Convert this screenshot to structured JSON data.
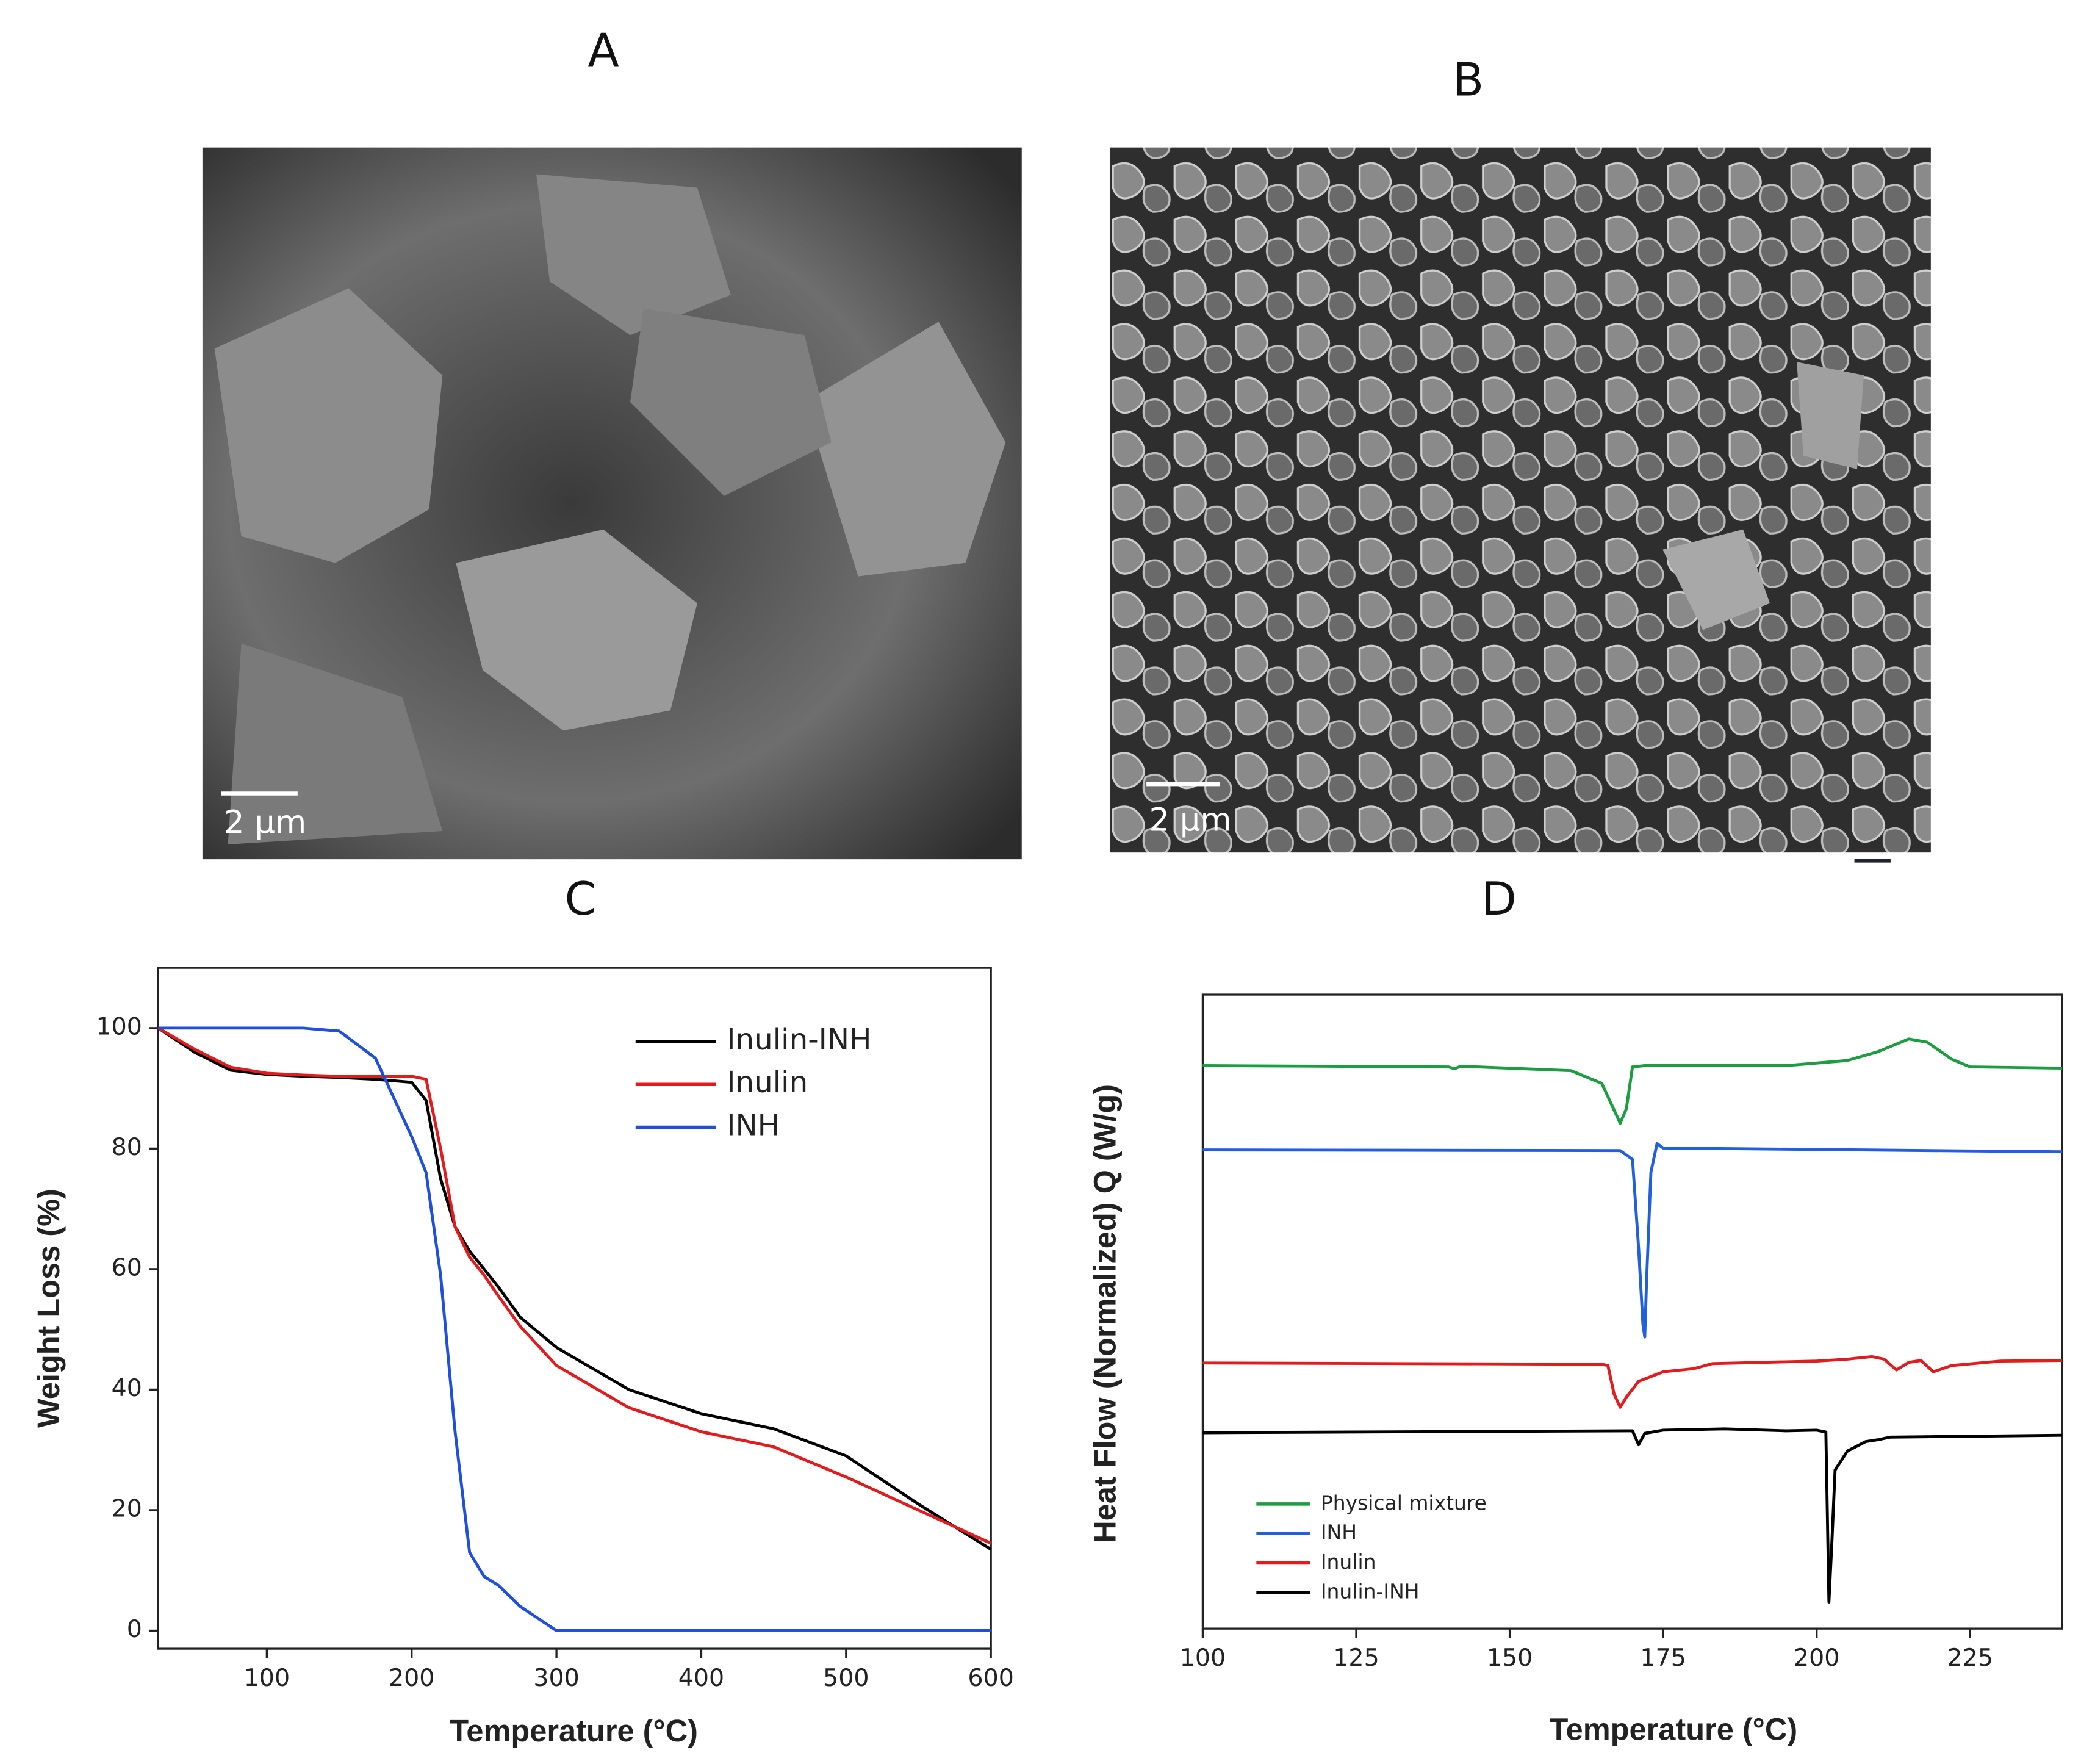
{
  "panels": [
    {
      "label": "A",
      "scale_bar": "2 μm"
    },
    {
      "label": "B",
      "scale_bar": "2 μm"
    }
  ],
  "chart_data": [
    {
      "type": "line",
      "title": "C",
      "x_label": "Temperature (°C)",
      "y_label": "Weight Loss (%)",
      "x": [
        25,
        50,
        75,
        100,
        125,
        150,
        175,
        200,
        210,
        220,
        230,
        240,
        250,
        260,
        275,
        300,
        350,
        400,
        450,
        500,
        550,
        600
      ],
      "series": [
        {
          "name": "Inulin-INH",
          "color": "#000000",
          "values": [
            100,
            96,
            93,
            92.3,
            92,
            91.8,
            91.5,
            91,
            88,
            75,
            67,
            63,
            60,
            57,
            52,
            47,
            40,
            36,
            33.5,
            29,
            21,
            13.5
          ]
        },
        {
          "name": "Inulin",
          "color": "#e41a1c",
          "values": [
            100,
            96.5,
            93.5,
            92.5,
            92.2,
            92,
            92,
            92,
            91.5,
            80,
            67,
            62,
            59,
            55.5,
            50.5,
            44,
            37,
            33,
            30.5,
            25.5,
            20,
            14.5
          ]
        },
        {
          "name": "INH",
          "color": "#1f4fe0",
          "values": [
            100,
            100,
            100,
            100,
            100,
            99.5,
            95,
            82,
            76,
            59,
            33,
            13,
            9,
            7.5,
            4,
            0,
            0,
            0,
            0,
            0,
            0,
            0
          ]
        }
      ],
      "xlim": [
        25,
        600
      ],
      "ylim": [
        -3,
        110
      ],
      "xticks": [
        100,
        200,
        300,
        400,
        500,
        600
      ],
      "yticks": [
        0,
        20,
        40,
        60,
        80,
        100
      ],
      "grid": false,
      "legend": "upper right"
    },
    {
      "type": "line",
      "title": "D",
      "x_label": "Temperature (°C)",
      "y_label": "Heat Flow (Normalized) Q (W/g)",
      "series": [
        {
          "name": "Physical mixture",
          "color": "#1a9e3f",
          "x": [
            100,
            140,
            141,
            142,
            160,
            165,
            168,
            169,
            170,
            172,
            195,
            205,
            210,
            215,
            218,
            222,
            225,
            240
          ],
          "values": [
            88.8,
            88.6,
            88.3,
            88.7,
            88,
            86,
            79.7,
            82,
            88.6,
            88.8,
            88.8,
            89.6,
            91,
            93,
            92.5,
            89.8,
            88.6,
            88.4
          ]
        },
        {
          "name": "INH",
          "color": "#1f5fe0",
          "x": [
            100,
            168,
            170,
            171,
            171.7,
            172,
            172.3,
            173,
            174,
            175,
            240
          ],
          "values": [
            75.5,
            75.4,
            74,
            60,
            48,
            46,
            55,
            72,
            76.5,
            75.8,
            75.2
          ]
        },
        {
          "name": "Inulin",
          "color": "#e41a1c",
          "x": [
            100,
            165,
            166,
            167,
            168,
            169,
            171,
            175,
            180,
            183,
            200,
            205,
            209,
            211,
            213,
            215,
            217,
            219,
            222,
            230,
            240
          ],
          "values": [
            41.9,
            41.7,
            41.5,
            37,
            34.9,
            36.5,
            39,
            40.5,
            41,
            41.8,
            42.2,
            42.5,
            42.9,
            42.5,
            40.8,
            42,
            42.3,
            40.5,
            41.5,
            42.2,
            42.3
          ]
        },
        {
          "name": "Inulin-INH",
          "color": "#000000",
          "x": [
            100,
            170,
            171,
            172,
            175,
            185,
            195,
            200,
            201.5,
            202,
            202.5,
            203,
            205,
            208,
            210,
            212,
            240
          ],
          "values": [
            30.9,
            31.2,
            29,
            30.8,
            31.3,
            31.5,
            31.2,
            31.3,
            31,
            4.2,
            14,
            25,
            28,
            29.5,
            29.8,
            30.2,
            30.5
          ]
        }
      ],
      "xlim": [
        100,
        240
      ],
      "ylim": [
        0,
        100
      ],
      "xticks": [
        100,
        125,
        150,
        175,
        200,
        225
      ],
      "grid": false,
      "legend": "lower left"
    }
  ]
}
